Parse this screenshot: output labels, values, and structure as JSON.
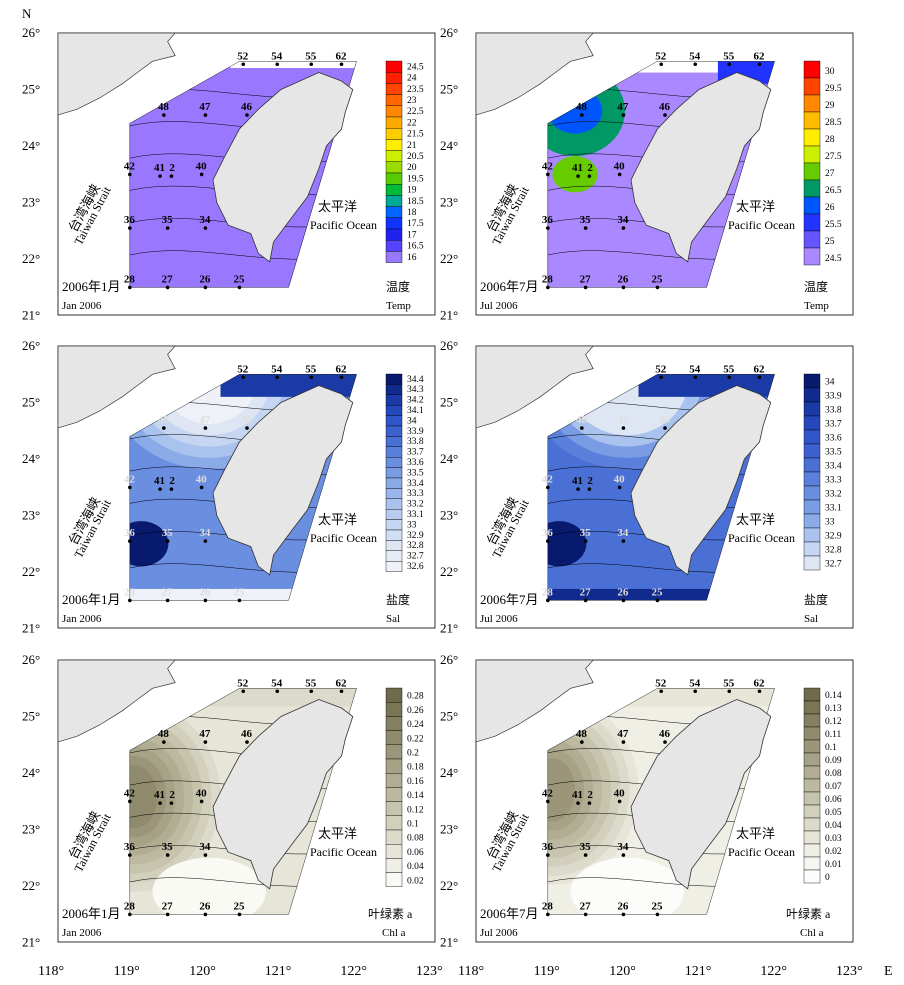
{
  "axes": {
    "y_labels": [
      "26°",
      "25°",
      "24°",
      "23°",
      "22°",
      "21°"
    ],
    "north_label": "N",
    "x_labels": [
      "118°",
      "119°",
      "120°",
      "121°",
      "122°",
      "123°"
    ],
    "x_labels_right": [
      "118°",
      "119°",
      "120°",
      "121°",
      "122°",
      "123°"
    ],
    "east_label": "E"
  },
  "labels": {
    "strait_cn": "台湾海峡",
    "strait_en": "Taiwan Strait",
    "ocean_cn": "太平洋",
    "ocean_en": "Pacific Ocean"
  },
  "stations": [
    {
      "id": "52",
      "lon": 120.5,
      "lat": 25.5
    },
    {
      "id": "54",
      "lon": 120.95,
      "lat": 25.5
    },
    {
      "id": "55",
      "lon": 121.4,
      "lat": 25.5
    },
    {
      "id": "62",
      "lon": 121.8,
      "lat": 25.5
    },
    {
      "id": "48",
      "lon": 119.45,
      "lat": 24.6
    },
    {
      "id": "47",
      "lon": 120.0,
      "lat": 24.6
    },
    {
      "id": "46",
      "lon": 120.55,
      "lat": 24.6
    },
    {
      "id": "42",
      "lon": 119.0,
      "lat": 23.55
    },
    {
      "id": "41",
      "lon": 119.4,
      "lat": 23.52
    },
    {
      "id": "2",
      "lon": 119.55,
      "lat": 23.52
    },
    {
      "id": "40",
      "lon": 119.95,
      "lat": 23.55
    },
    {
      "id": "36",
      "lon": 119.0,
      "lat": 22.6
    },
    {
      "id": "35",
      "lon": 119.5,
      "lat": 22.6
    },
    {
      "id": "34",
      "lon": 120.0,
      "lat": 22.6
    },
    {
      "id": "28",
      "lon": 119.0,
      "lat": 21.55
    },
    {
      "id": "27",
      "lon": 119.5,
      "lat": 21.55
    },
    {
      "id": "26",
      "lon": 120.0,
      "lat": 21.55
    },
    {
      "id": "25",
      "lon": 120.45,
      "lat": 21.55
    }
  ],
  "panels": [
    {
      "date_cn": "2006年1月",
      "date_en": "Jan 2006",
      "var_cn": "温度",
      "var_en": "Temp",
      "legend_levels": [
        "24.5",
        "24",
        "23.5",
        "23",
        "22.5",
        "22",
        "21.5",
        "21",
        "20.5",
        "20",
        "19.5",
        "19",
        "18.5",
        "18",
        "17.5",
        "17",
        "16.5",
        "16"
      ],
      "legend_colors": [
        "#ff0000",
        "#ff2000",
        "#ff4400",
        "#ff6600",
        "#ff8800",
        "#ffaa00",
        "#ffcc00",
        "#ffee00",
        "#ccee00",
        "#99dd00",
        "#55cc00",
        "#00bb33",
        "#00aa99",
        "#0066ff",
        "#1133ff",
        "#2222ee",
        "#5544ff",
        "#9977ff"
      ]
    },
    {
      "date_cn": "2006年7月",
      "date_en": "Jul 2006",
      "var_cn": "温度",
      "var_en": "Temp",
      "legend_levels": [
        "30",
        "29.5",
        "29",
        "28.5",
        "28",
        "27.5",
        "27",
        "26.5",
        "26",
        "25.5",
        "25",
        "24.5"
      ],
      "legend_colors": [
        "#ff0000",
        "#ff4400",
        "#ff8800",
        "#ffbb00",
        "#ffee00",
        "#ccee00",
        "#66cc00",
        "#009966",
        "#0055ff",
        "#2233ff",
        "#6655ff",
        "#aa88ff"
      ]
    },
    {
      "date_cn": "2006年1月",
      "date_en": "Jan 2006",
      "var_cn": "盐度",
      "var_en": "Sal",
      "legend_levels": [
        "34.4",
        "34.3",
        "34.2",
        "34.1",
        "34",
        "33.9",
        "33.8",
        "33.7",
        "33.6",
        "33.5",
        "33.4",
        "33.3",
        "33.2",
        "33.1",
        "33",
        "32.9",
        "32.8",
        "32.7",
        "32.6"
      ],
      "legend_colors": [
        "#081a6e",
        "#102a8e",
        "#1a3aa8",
        "#2448bc",
        "#3055c8",
        "#3d62d0",
        "#4a70d6",
        "#5a80dc",
        "#6a8ee0",
        "#7a9ce4",
        "#8aaae8",
        "#9ab6ec",
        "#aac2ee",
        "#b8ccf0",
        "#c6d6f2",
        "#d2def4",
        "#dee6f4",
        "#e6ecf6",
        "#eef2f8"
      ]
    },
    {
      "date_cn": "2006年7月",
      "date_en": "Jul 2006",
      "var_cn": "盐度",
      "var_en": "Sal",
      "legend_levels": [
        "34",
        "33.9",
        "33.8",
        "33.7",
        "33.6",
        "33.5",
        "33.4",
        "33.3",
        "33.2",
        "33.1",
        "33",
        "32.9",
        "32.8",
        "32.7"
      ],
      "legend_colors": [
        "#081a6e",
        "#102a8e",
        "#1a3aa8",
        "#2448bc",
        "#3055c8",
        "#3d62d0",
        "#4a70d6",
        "#5a80dc",
        "#6a8ee0",
        "#7a9ce4",
        "#8aaae8",
        "#aac2ee",
        "#c6d6f2",
        "#dee6f4"
      ]
    },
    {
      "date_cn": "2006年1月",
      "date_en": "Jan 2006",
      "var_cn": "叶绿素 a",
      "var_en": "Chl a",
      "legend_levels": [
        "0.28",
        "0.26",
        "0.24",
        "0.22",
        "0.2",
        "0.18",
        "0.16",
        "0.14",
        "0.12",
        "0.1",
        "0.08",
        "0.06",
        "0.04",
        "0.02"
      ],
      "legend_colors": [
        "#6f6a4a",
        "#7a7555",
        "#858061",
        "#908b6d",
        "#9b9679",
        "#a6a286",
        "#b1ad93",
        "#bcb9a0",
        "#c7c4ae",
        "#d2d0bc",
        "#dcdaca",
        "#e6e5d8",
        "#f0efe6",
        "#fafaf5"
      ]
    },
    {
      "date_cn": "2006年7月",
      "date_en": "Jul 2006",
      "var_cn": "叶绿素 a",
      "var_en": "Chl a",
      "legend_levels": [
        "0.14",
        "0.13",
        "0.12",
        "0.11",
        "0.1",
        "0.09",
        "0.08",
        "0.07",
        "0.06",
        "0.05",
        "0.04",
        "0.03",
        "0.02",
        "0.01",
        "0"
      ],
      "legend_colors": [
        "#6f6a4a",
        "#7a7555",
        "#858061",
        "#908b6d",
        "#9b9679",
        "#a6a286",
        "#b1ad93",
        "#bcb9a0",
        "#c7c4ae",
        "#d2d0bc",
        "#dcdaca",
        "#e6e5d8",
        "#f0efe6",
        "#f6f6f0",
        "#fcfcfa"
      ]
    }
  ]
}
